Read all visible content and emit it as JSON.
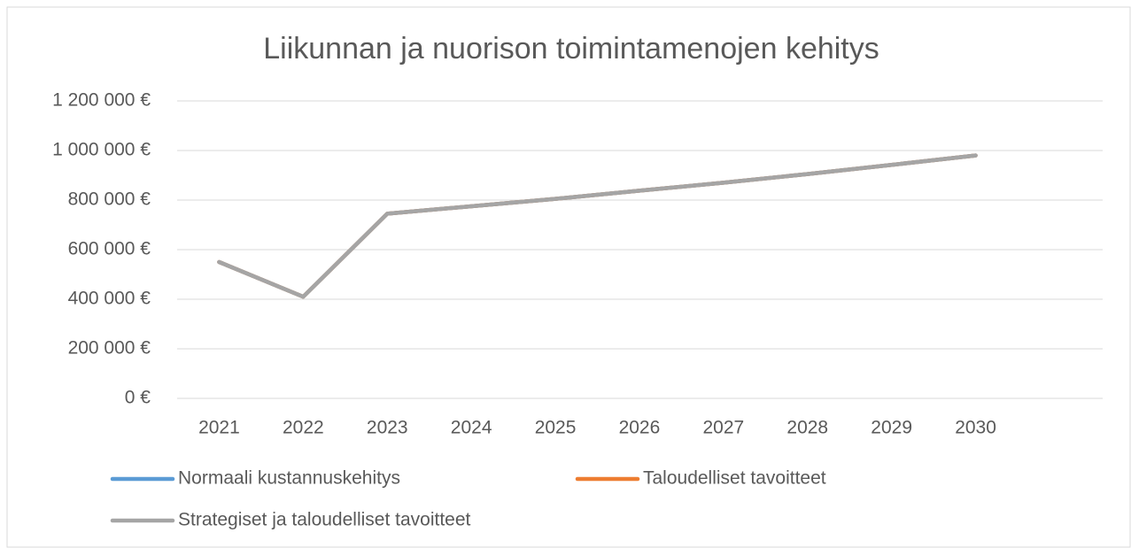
{
  "chart_data": {
    "type": "line",
    "title": "Liikunnan ja nuorison toimintamenojen kehitys",
    "categories": [
      "2021",
      "2022",
      "2023",
      "2024",
      "2025",
      "2026",
      "2027",
      "2028",
      "2029",
      "2030"
    ],
    "series": [
      {
        "name": "Normaali kustannuskehitys",
        "color": "#5b9bd5",
        "values": [
          550000,
          410000,
          745000,
          775000,
          805000,
          838000,
          870000,
          905000,
          942000,
          980000
        ]
      },
      {
        "name": "Taloudelliset tavoitteet",
        "color": "#ed7d31",
        "values": [
          550000,
          410000,
          745000,
          775000,
          805000,
          838000,
          870000,
          905000,
          942000,
          980000
        ]
      },
      {
        "name": "Strategiset ja taloudelliset tavoitteet",
        "color": "#a5a5a5",
        "values": [
          550000,
          410000,
          745000,
          775000,
          805000,
          838000,
          870000,
          905000,
          942000,
          980000
        ]
      }
    ],
    "ylim": [
      0,
      1200000
    ],
    "yticks": [
      {
        "value": 0,
        "label": "0 €"
      },
      {
        "value": 200000,
        "label": "200 000 €"
      },
      {
        "value": 400000,
        "label": "400 000 €"
      },
      {
        "value": 600000,
        "label": "600 000 €"
      },
      {
        "value": 800000,
        "label": "800 000 €"
      },
      {
        "value": 1000000,
        "label": "1 000 000 €"
      },
      {
        "value": 1200000,
        "label": "1 200 000 €"
      }
    ],
    "grid": true
  }
}
